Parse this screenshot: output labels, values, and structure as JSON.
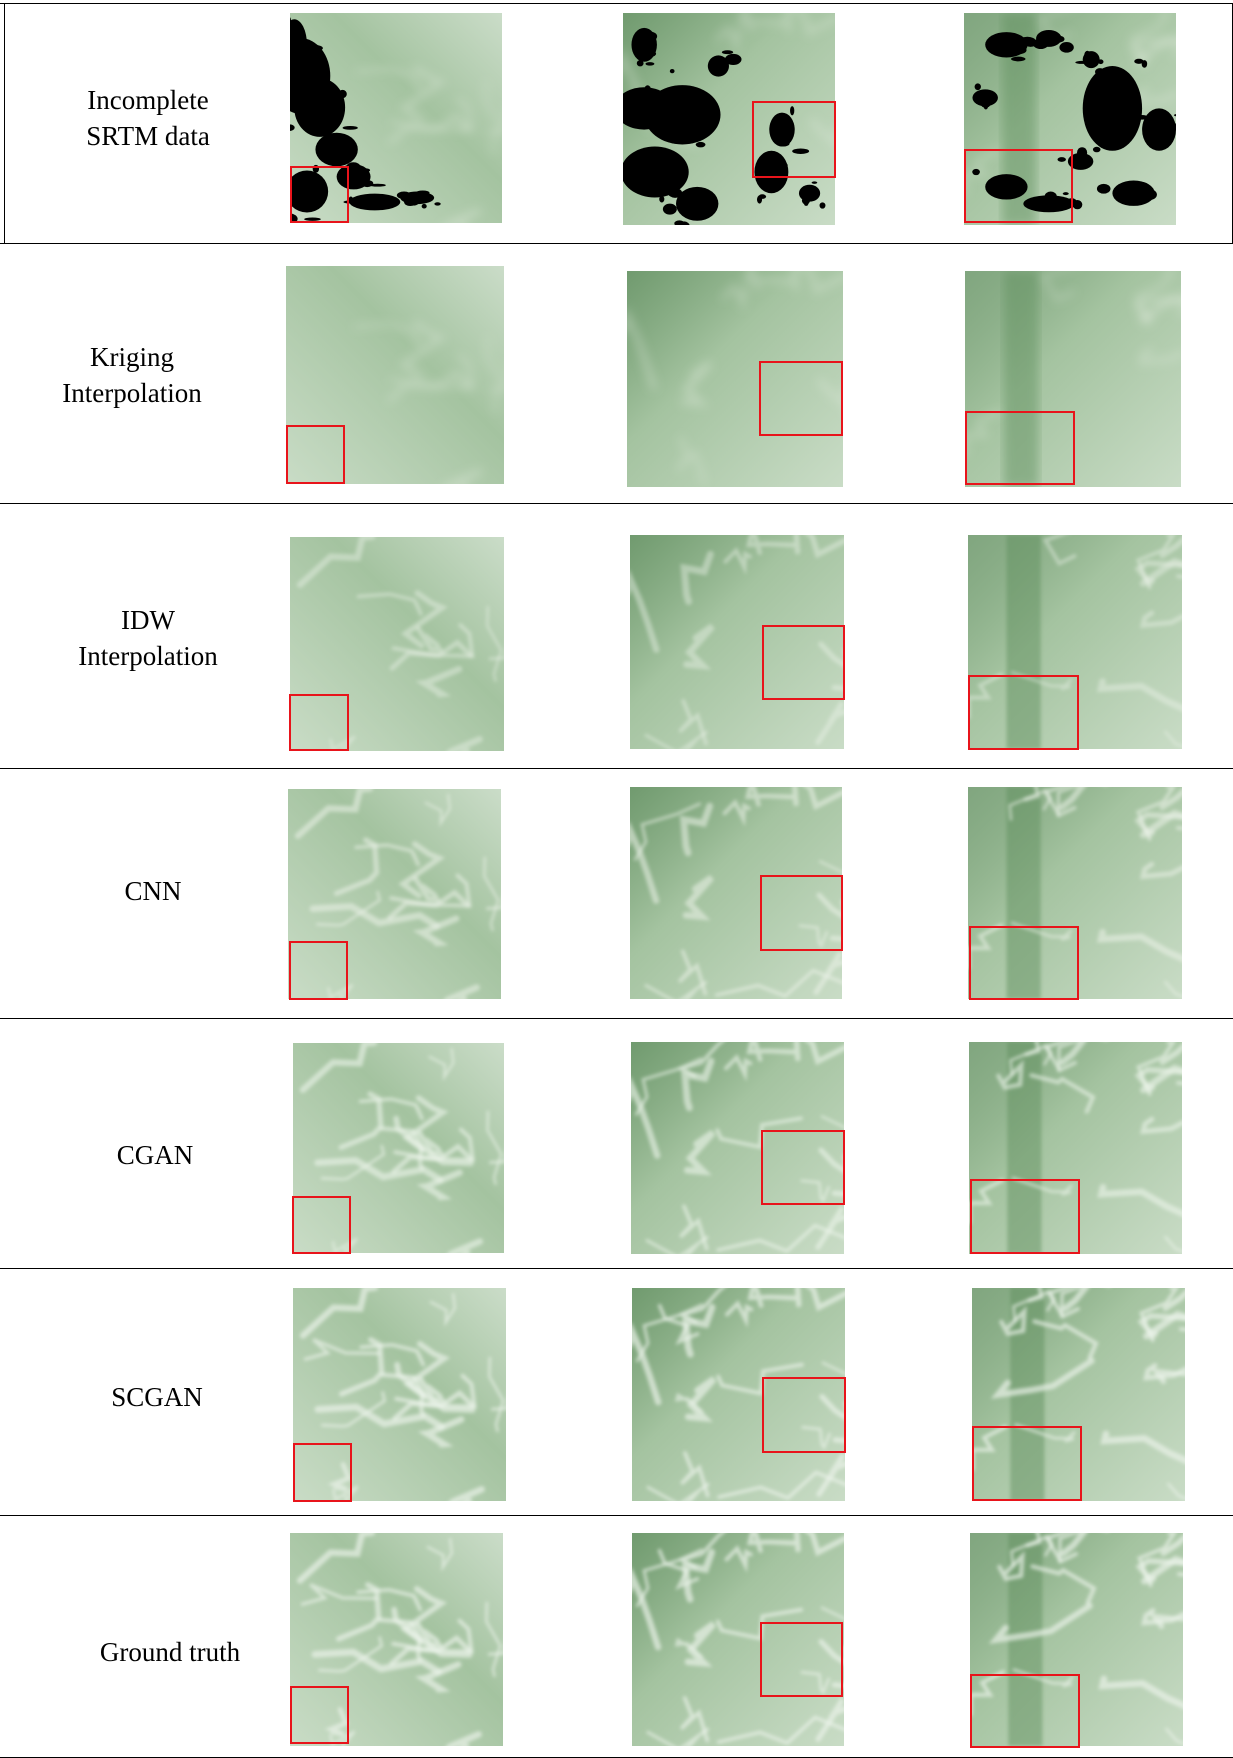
{
  "figure": {
    "rows": [
      {
        "id": "incomplete",
        "label_lines": [
          "Incomplete",
          "SRTM data"
        ]
      },
      {
        "id": "kriging",
        "label_lines": [
          "Kriging",
          "Interpolation"
        ]
      },
      {
        "id": "idw",
        "label_lines": [
          "IDW",
          "Interpolation"
        ]
      },
      {
        "id": "cnn",
        "label_lines": [
          "CNN"
        ]
      },
      {
        "id": "cgan",
        "label_lines": [
          "CGAN"
        ]
      },
      {
        "id": "scgan",
        "label_lines": [
          "SCGAN"
        ]
      },
      {
        "id": "ground-truth",
        "label_lines": [
          "Ground truth"
        ]
      }
    ],
    "colors": {
      "terrain_light": "#c9dcc6",
      "terrain_mid": "#a4c3a0",
      "terrain_dark": "#5c8c5a",
      "void": "#000000",
      "highlight_box": "#e8141b",
      "rule": "#000000"
    }
  }
}
